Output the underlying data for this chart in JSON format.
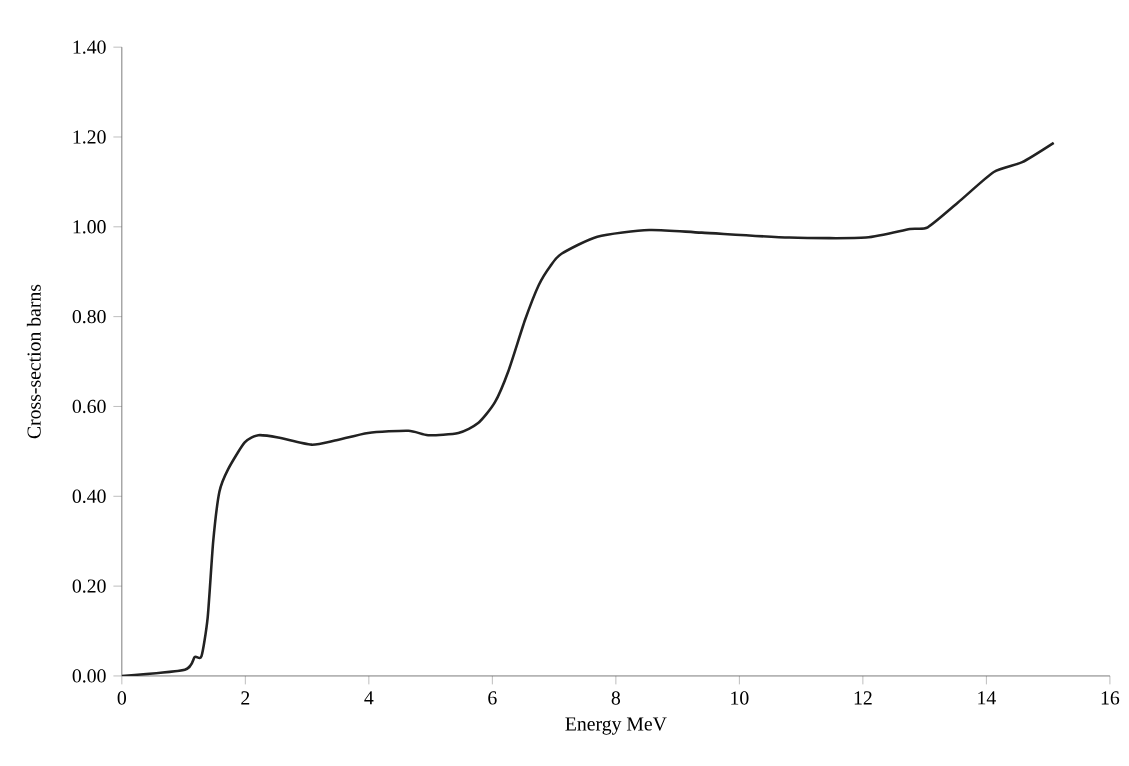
{
  "chart_data": {
    "type": "line",
    "xlabel": "Energy MeV",
    "ylabel": "Cross-section barns",
    "xlim": [
      0,
      16
    ],
    "ylim": [
      0,
      1.4
    ],
    "xticks": [
      0,
      2,
      4,
      6,
      8,
      10,
      12,
      14,
      16
    ],
    "yticks": [
      {
        "value": 0,
        "label": "0.00"
      },
      {
        "value": 0.2,
        "label": "0.20"
      },
      {
        "value": 0.4,
        "label": "0.40"
      },
      {
        "value": 0.6,
        "label": "0.60"
      },
      {
        "value": 0.8,
        "label": "0.80"
      },
      {
        "value": 1.0,
        "label": "1.00"
      },
      {
        "value": 1.2,
        "label": "1.20"
      },
      {
        "value": 1.4,
        "label": "1.40"
      }
    ],
    "grid": false,
    "marker": "none",
    "line_style": "solid",
    "series": [
      {
        "color": "#222222",
        "x": [
          0,
          1.02,
          1.18,
          1.29,
          1.39,
          1.48,
          1.58,
          1.72,
          1.99,
          2.21,
          2.53,
          3.07,
          3.45,
          3.99,
          4.64,
          4.96,
          5.45,
          5.77,
          6.04,
          6.26,
          6.53,
          6.75,
          6.94,
          7.12,
          7.7,
          8.54,
          9.39,
          10.81,
          12.05,
          12.76,
          13.05,
          13.54,
          14.12,
          14.58,
          15.09
        ],
        "values": [
          0,
          0.014,
          0.042,
          0.044,
          0.13,
          0.3,
          0.41,
          0.46,
          0.52,
          0.536,
          0.531,
          0.515,
          0.524,
          0.541,
          0.546,
          0.536,
          0.541,
          0.563,
          0.609,
          0.679,
          0.793,
          0.87,
          0.913,
          0.94,
          0.978,
          0.993,
          0.987,
          0.976,
          0.976,
          0.995,
          0.999,
          1.054,
          1.122,
          1.144,
          1.187
        ]
      }
    ]
  }
}
